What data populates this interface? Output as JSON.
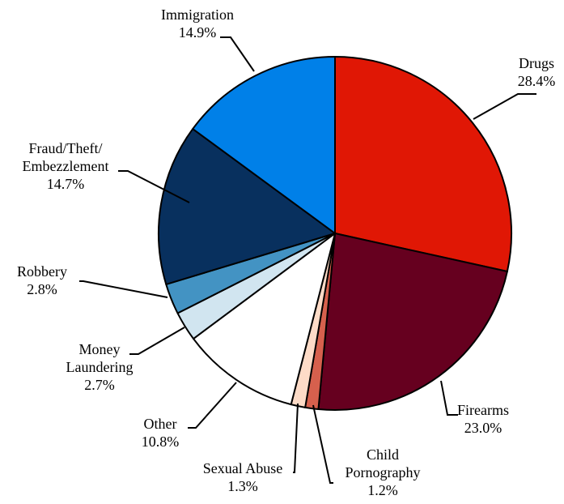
{
  "chart_data": {
    "type": "pie",
    "title": "",
    "unit": "%",
    "slices": [
      {
        "name": "Drugs",
        "label_lines": [
          "Drugs"
        ],
        "value": 28.4,
        "value_label": "28.4%",
        "color": "#e01705"
      },
      {
        "name": "Firearms",
        "label_lines": [
          "Firearms"
        ],
        "value": 23.0,
        "value_label": "23.0%",
        "color": "#66001f"
      },
      {
        "name": "Child Pornography",
        "label_lines": [
          "Child",
          "Pornography"
        ],
        "value": 1.2,
        "value_label": "1.2%",
        "color": "#d6604d"
      },
      {
        "name": "Sexual Abuse",
        "label_lines": [
          "Sexual Abuse"
        ],
        "value": 1.3,
        "value_label": "1.3%",
        "color": "#fddbc7"
      },
      {
        "name": "Other",
        "label_lines": [
          "Other"
        ],
        "value": 10.8,
        "value_label": "10.8%",
        "color": "#ffffff"
      },
      {
        "name": "Money Laundering",
        "label_lines": [
          "Money",
          "Laundering"
        ],
        "value": 2.7,
        "value_label": "2.7%",
        "color": "#d1e5f0"
      },
      {
        "name": "Robbery",
        "label_lines": [
          "Robbery"
        ],
        "value": 2.8,
        "value_label": "2.8%",
        "color": "#4393c3"
      },
      {
        "name": "Fraud/Theft/Embezzlement",
        "label_lines": [
          "Fraud/Theft/",
          "Embezzlement"
        ],
        "value": 14.7,
        "value_label": "14.7%",
        "color": "#08305e"
      },
      {
        "name": "Immigration",
        "label_lines": [
          "Immigration"
        ],
        "value": 14.9,
        "value_label": "14.9%",
        "color": "#0080e8"
      }
    ]
  }
}
